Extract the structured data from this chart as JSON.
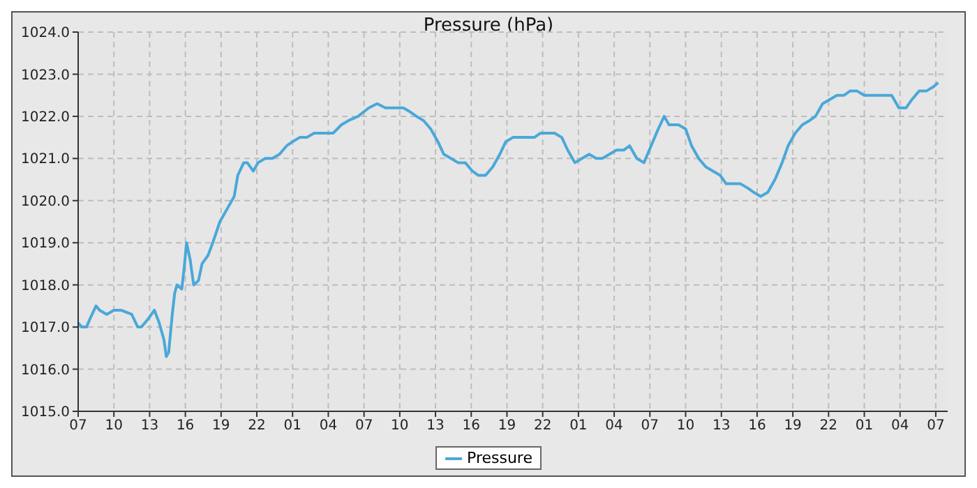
{
  "chart_data": {
    "type": "line",
    "title": "Pressure (hPa)",
    "x": [
      "--01-01T07:00",
      "--01-01T07:18",
      "--01-01T07:42",
      "--01-01T08:00",
      "--01-01T08:30",
      "--01-01T08:48",
      "--01-01T09:24",
      "--01-01T10:00",
      "--01-01T10:36",
      "--01-01T11:30",
      "--01-01T12:00",
      "--01-01T12:18",
      "--01-01T12:54",
      "--01-01T13:24",
      "--01-01T13:48",
      "--01-01T14:12",
      "--01-01T14:24",
      "--01-01T14:36",
      "--01-01T14:54",
      "--01-01T15:06",
      "--01-01T15:18",
      "--01-01T15:42",
      "--01-01T15:54",
      "--01-01T16:06",
      "--01-01T16:24",
      "--01-01T16:42",
      "--01-01T17:06",
      "--01-01T17:24",
      "--01-01T17:54",
      "--01-01T18:18",
      "--01-01T18:54",
      "--01-01T19:30",
      "--01-01T20:06",
      "--01-01T20:24",
      "--01-01T20:54",
      "--01-01T21:12",
      "--01-01T21:42",
      "--01-01T22:06",
      "--01-01T22:42",
      "--01-01T23:18",
      "--01-01T23:54",
      "--01-02T00:30",
      "--01-02T01:00",
      "--01-02T01:36",
      "--01-02T02:12",
      "--01-02T02:48",
      "--01-02T03:36",
      "--01-02T04:24",
      "--01-02T05:06",
      "--01-02T05:42",
      "--01-02T06:30",
      "--01-02T07:24",
      "--01-02T08:06",
      "--01-02T08:48",
      "--01-02T09:42",
      "--01-02T10:18",
      "--01-02T10:54",
      "--01-02T11:24",
      "--01-02T12:00",
      "--01-02T12:36",
      "--01-02T13:12",
      "--01-02T13:42",
      "--01-02T14:18",
      "--01-02T14:54",
      "--01-02T15:30",
      "--01-02T16:06",
      "--01-02T16:36",
      "--01-02T17:12",
      "--01-02T17:48",
      "--01-02T18:24",
      "--01-02T18:54",
      "--01-02T19:30",
      "--01-02T20:06",
      "--01-02T20:42",
      "--01-02T21:18",
      "--01-02T21:48",
      "--01-02T22:24",
      "--01-02T23:00",
      "--01-02T23:36",
      "--01-03T00:06",
      "--01-03T00:42",
      "--01-03T01:18",
      "--01-03T01:54",
      "--01-03T02:30",
      "--01-03T03:00",
      "--01-03T03:36",
      "--01-03T04:12",
      "--01-03T04:48",
      "--01-03T05:18",
      "--01-03T05:54",
      "--01-03T06:30",
      "--01-03T07:06",
      "--01-03T07:42",
      "--01-03T08:12",
      "--01-03T08:36",
      "--01-03T09:24",
      "--01-03T10:00",
      "--01-03T10:30",
      "--01-03T11:06",
      "--01-03T11:42",
      "--01-03T12:18",
      "--01-03T12:54",
      "--01-03T13:24",
      "--01-03T14:00",
      "--01-03T14:36",
      "--01-03T15:12",
      "--01-03T15:42",
      "--01-03T16:18",
      "--01-03T16:54",
      "--01-03T17:30",
      "--01-03T18:06",
      "--01-03T18:36",
      "--01-03T19:12",
      "--01-03T19:48",
      "--01-03T20:24",
      "--01-03T20:54",
      "--01-03T21:30",
      "--01-03T22:06",
      "--01-03T22:42",
      "--01-03T23:18",
      "--01-03T23:48",
      "--01-04T00:24",
      "--01-04T01:00",
      "--01-04T01:36",
      "--01-04T02:06",
      "--01-04T02:42",
      "--01-04T03:18",
      "--01-04T03:54",
      "--01-04T04:30",
      "--01-04T05:00",
      "--01-04T05:36",
      "--01-04T06:12",
      "--01-04T06:48",
      "--01-04T07:12"
    ],
    "series": [
      {
        "name": "Pressure",
        "color": "#4aa8d8",
        "values": [
          1017.1,
          1017.0,
          1017.0,
          1017.2,
          1017.5,
          1017.4,
          1017.3,
          1017.4,
          1017.4,
          1017.3,
          1017.0,
          1017.0,
          1017.2,
          1017.4,
          1017.1,
          1016.7,
          1016.3,
          1016.4,
          1017.3,
          1017.8,
          1018.0,
          1017.9,
          1018.4,
          1019.0,
          1018.6,
          1018.0,
          1018.1,
          1018.5,
          1018.7,
          1019.0,
          1019.5,
          1019.8,
          1020.1,
          1020.6,
          1020.9,
          1020.9,
          1020.7,
          1020.9,
          1021.0,
          1021.0,
          1021.1,
          1021.3,
          1021.4,
          1021.5,
          1021.5,
          1021.6,
          1021.6,
          1021.6,
          1021.8,
          1021.9,
          1022.0,
          1022.2,
          1022.3,
          1022.2,
          1022.2,
          1022.2,
          1022.1,
          1022.0,
          1021.9,
          1021.7,
          1021.4,
          1021.1,
          1021.0,
          1020.9,
          1020.9,
          1020.7,
          1020.6,
          1020.6,
          1020.8,
          1021.1,
          1021.4,
          1021.5,
          1021.5,
          1021.5,
          1021.5,
          1021.6,
          1021.6,
          1021.6,
          1021.5,
          1021.2,
          1020.9,
          1021.0,
          1021.1,
          1021.0,
          1021.0,
          1021.1,
          1021.2,
          1021.2,
          1021.3,
          1021.0,
          1020.9,
          1021.3,
          1021.7,
          1022.0,
          1021.8,
          1021.8,
          1021.7,
          1021.3,
          1021.0,
          1020.8,
          1020.7,
          1020.6,
          1020.4,
          1020.4,
          1020.4,
          1020.3,
          1020.2,
          1020.1,
          1020.2,
          1020.5,
          1020.9,
          1021.3,
          1021.6,
          1021.8,
          1021.9,
          1022.0,
          1022.3,
          1022.4,
          1022.5,
          1022.5,
          1022.6,
          1022.6,
          1022.5,
          1022.5,
          1022.5,
          1022.5,
          1022.5,
          1022.2,
          1022.2,
          1022.4,
          1022.6,
          1022.6,
          1022.7,
          1022.8
        ]
      }
    ],
    "xlim": [
      "--01-01T07:00",
      "--01-04T08:00"
    ],
    "xticks": [
      {
        "value": "--01-01T07:00",
        "label": "07"
      },
      {
        "value": "--01-01T10:00",
        "label": "10"
      },
      {
        "value": "--01-01T13:00",
        "label": "13"
      },
      {
        "value": "--01-01T16:00",
        "label": "16"
      },
      {
        "value": "--01-01T19:00",
        "label": "19"
      },
      {
        "value": "--01-01T22:00",
        "label": "22"
      },
      {
        "value": "--01-02T01:00",
        "label": "01"
      },
      {
        "value": "--01-02T04:00",
        "label": "04"
      },
      {
        "value": "--01-02T07:00",
        "label": "07"
      },
      {
        "value": "--01-02T10:00",
        "label": "10"
      },
      {
        "value": "--01-02T13:00",
        "label": "13"
      },
      {
        "value": "--01-02T16:00",
        "label": "16"
      },
      {
        "value": "--01-02T19:00",
        "label": "19"
      },
      {
        "value": "--01-02T22:00",
        "label": "22"
      },
      {
        "value": "--01-03T01:00",
        "label": "01"
      },
      {
        "value": "--01-03T04:00",
        "label": "04"
      },
      {
        "value": "--01-03T07:00",
        "label": "07"
      },
      {
        "value": "--01-03T10:00",
        "label": "10"
      },
      {
        "value": "--01-03T13:00",
        "label": "13"
      },
      {
        "value": "--01-03T16:00",
        "label": "16"
      },
      {
        "value": "--01-03T19:00",
        "label": "19"
      },
      {
        "value": "--01-03T22:00",
        "label": "22"
      },
      {
        "value": "--01-04T01:00",
        "label": "01"
      },
      {
        "value": "--01-04T04:00",
        "label": "04"
      },
      {
        "value": "--01-04T07:00",
        "label": "07"
      }
    ],
    "ylim": [
      1015,
      1024
    ],
    "yticks": [
      {
        "value": 1015,
        "label": "1015.0"
      },
      {
        "value": 1016,
        "label": "1016.0"
      },
      {
        "value": 1017,
        "label": "1017.0"
      },
      {
        "value": 1018,
        "label": "1018.0"
      },
      {
        "value": 1019,
        "label": "1019.0"
      },
      {
        "value": 1020,
        "label": "1020.0"
      },
      {
        "value": 1021,
        "label": "1021.0"
      },
      {
        "value": 1022,
        "label": "1022.0"
      },
      {
        "value": 1023,
        "label": "1023.0"
      },
      {
        "value": 1024,
        "label": "1024.0"
      }
    ],
    "grid": true,
    "legend": "bottom",
    "marker": "none",
    "line_style": "solid"
  }
}
